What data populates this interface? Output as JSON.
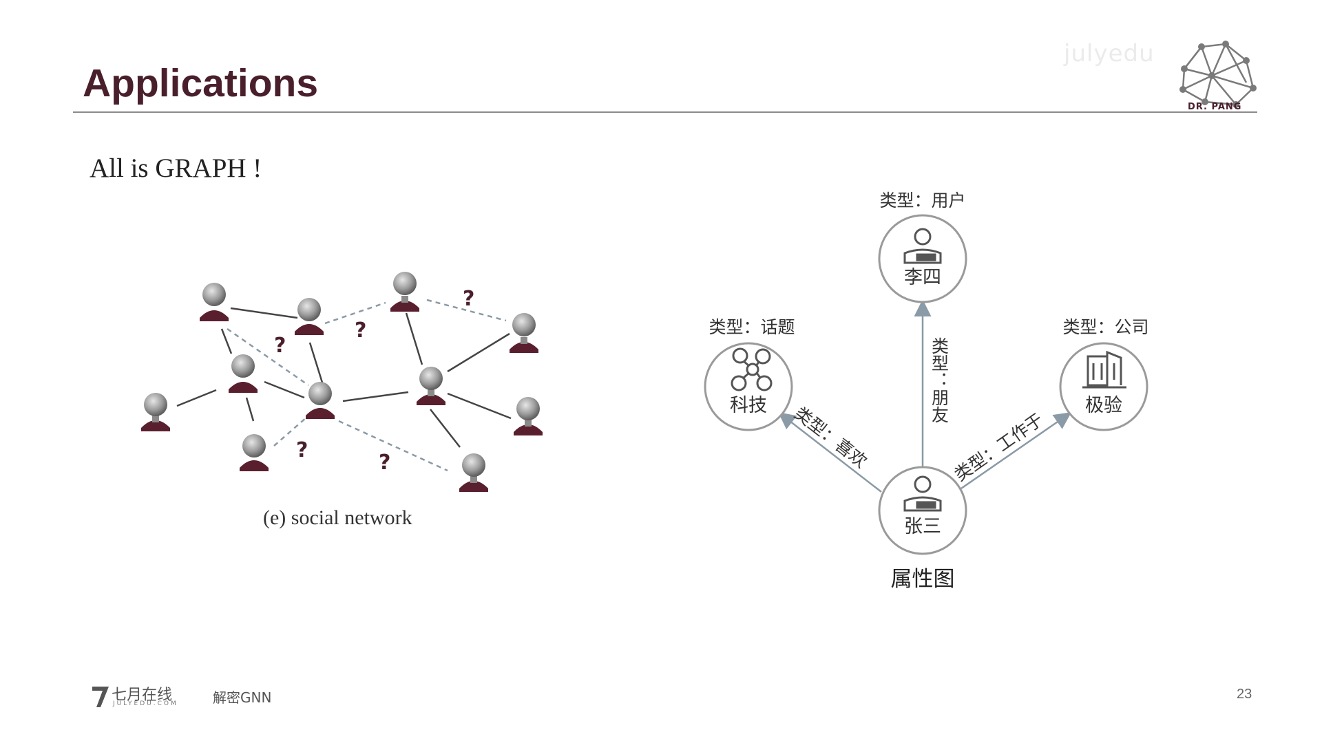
{
  "slide": {
    "title": "Applications",
    "subtitle": "All is GRAPH !",
    "logo_text": "DR. PANG",
    "watermark": "julyedu",
    "page_number": "23"
  },
  "footer": {
    "brand": "七月在线",
    "brand_sub": "JULYEDU.COM",
    "course": "解密GNN"
  },
  "social_network": {
    "caption": "(e) social network",
    "question_mark": "?"
  },
  "property_graph": {
    "caption": "属性图",
    "nodes": {
      "user": {
        "type": "类型：用户",
        "name": "李四"
      },
      "topic": {
        "type": "类型：话题",
        "name": "科技"
      },
      "company": {
        "type": "类型：公司",
        "name": "极验"
      },
      "center": {
        "name": "张三"
      }
    },
    "edges": {
      "friend": "类型：朋友",
      "likes": "类型：喜欢",
      "works_at": "类型：工作于"
    }
  },
  "colors": {
    "title": "#4a1f2c",
    "person_body": "#5a1f2e",
    "node_stroke": "#9a9a9a",
    "edge": "#8a9aa6"
  }
}
